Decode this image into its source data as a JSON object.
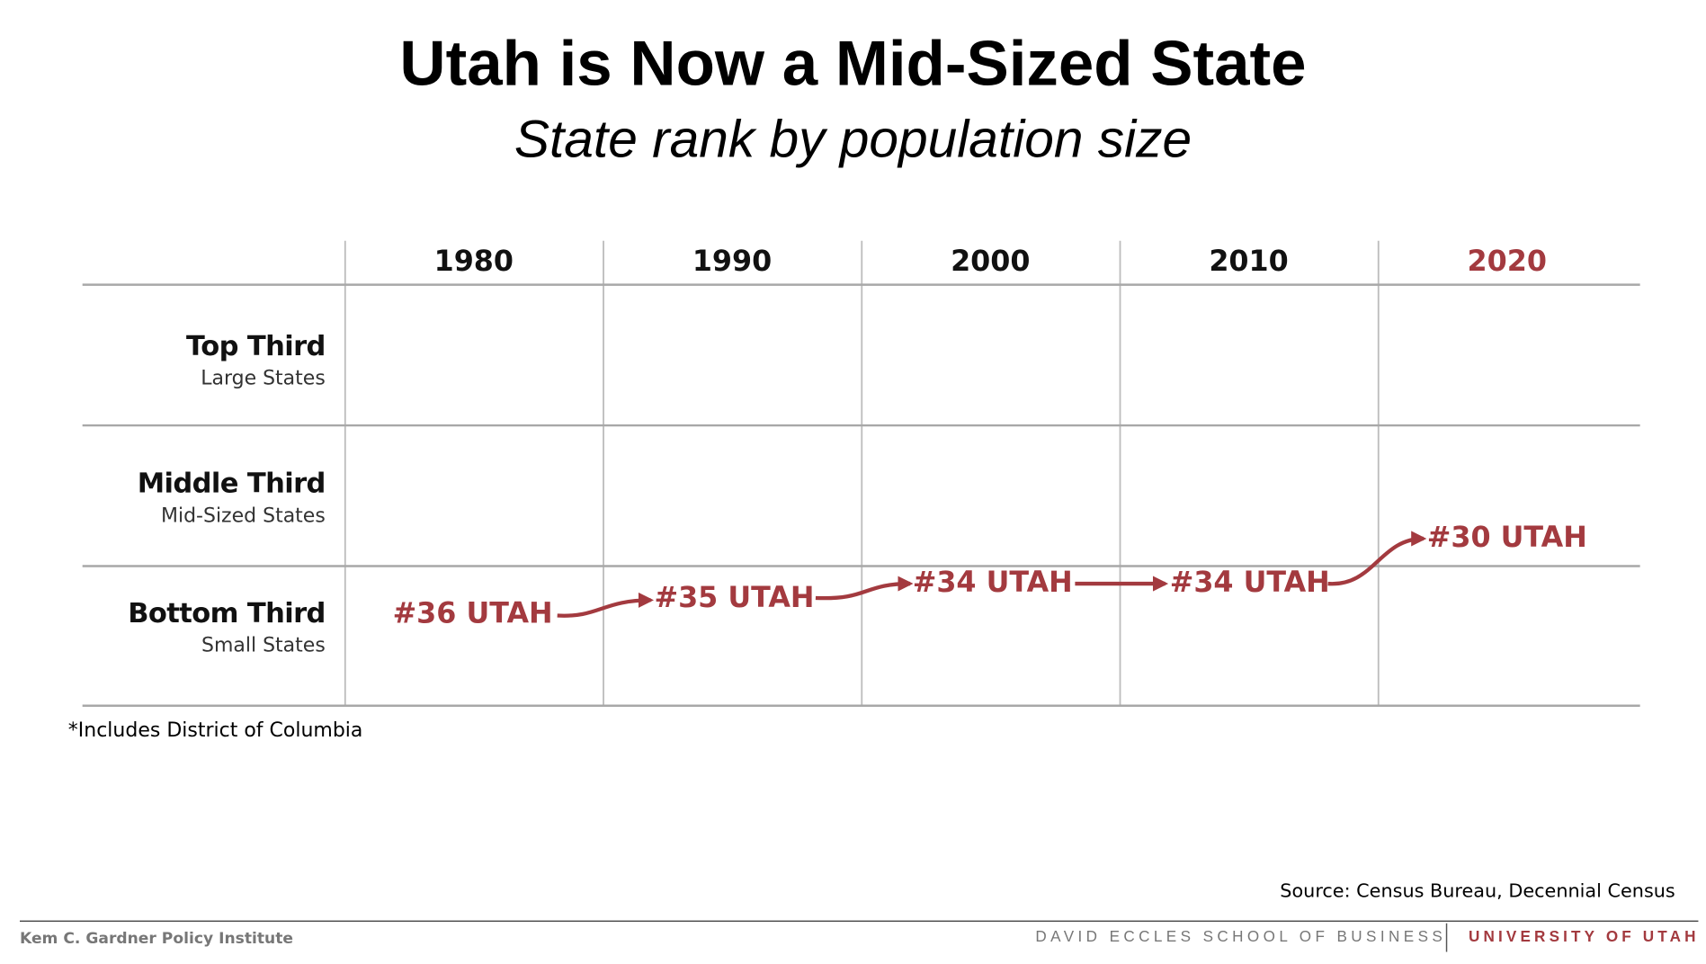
{
  "title": "Utah is Now a Mid-Sized State",
  "subtitle": "State rank by population size",
  "years": [
    "1980",
    "1990",
    "2000",
    "2010",
    "2020"
  ],
  "rows": [
    {
      "label": "Top Third",
      "sublabel": "Large States"
    },
    {
      "label": "Middle Third",
      "sublabel": "Mid-Sized States"
    },
    {
      "label": "Bottom Third",
      "sublabel": "Small States"
    }
  ],
  "ranks": [
    "#36 UTAH",
    "#35 UTAH",
    "#34 UTAH",
    "#34 UTAH",
    "#30 UTAH"
  ],
  "footnote": "*Includes District of Columbia",
  "source": "Source:  Census Bureau, Decennial Census",
  "footer": {
    "left": "Kem C. Gardner Policy Institute",
    "center": "DAVID ECCLES SCHOOL OF BUSINESS",
    "right": "UNIVERSITY OF UTAH"
  }
}
